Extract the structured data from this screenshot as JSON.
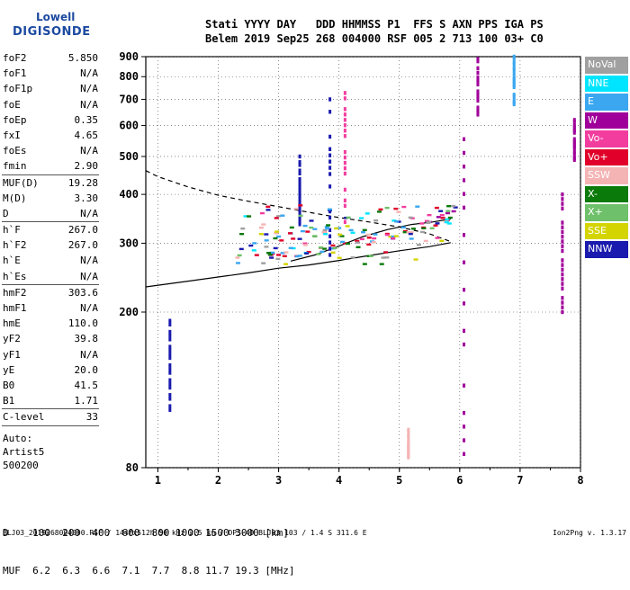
{
  "logo": {
    "line1": "Lowell",
    "line2": "DIGISONDE"
  },
  "header": {
    "row1": "Stati YYYY DAY   DDD HHMMSS P1  FFS S AXN PPS IGA PS",
    "row2": "Belem 2019 Sep25 268 004000 RSF 005 2 713 100 03+ C0"
  },
  "params": [
    {
      "label": "foF2",
      "value": "5.850"
    },
    {
      "label": "foF1",
      "value": "N/A"
    },
    {
      "label": "foF1p",
      "value": "N/A"
    },
    {
      "label": "foE",
      "value": "N/A"
    },
    {
      "label": "foEp",
      "value": "0.35"
    },
    {
      "label": "fxI",
      "value": "4.65"
    },
    {
      "label": "foEs",
      "value": "N/A"
    },
    {
      "label": "fmin",
      "value": "2.90"
    },
    {
      "sep": true
    },
    {
      "label": "MUF(D)",
      "value": "19.28"
    },
    {
      "label": "M(D)",
      "value": "3.30"
    },
    {
      "label": "D",
      "value": "N/A"
    },
    {
      "sep": true
    },
    {
      "label": "h`F",
      "value": "267.0"
    },
    {
      "label": "h`F2",
      "value": "267.0"
    },
    {
      "label": "h`E",
      "value": "N/A"
    },
    {
      "label": "h`Es",
      "value": "N/A"
    },
    {
      "sep": true
    },
    {
      "label": "hmF2",
      "value": "303.6"
    },
    {
      "label": "hmF1",
      "value": "N/A"
    },
    {
      "label": "hmE",
      "value": "110.0"
    },
    {
      "label": "yF2",
      "value": "39.8"
    },
    {
      "label": "yF1",
      "value": "N/A"
    },
    {
      "label": "yE",
      "value": "20.0"
    },
    {
      "label": "B0",
      "value": "41.5"
    },
    {
      "label": "B1",
      "value": "1.71"
    },
    {
      "sep": true
    },
    {
      "label": "C-level",
      "value": "33"
    },
    {
      "sep": true
    }
  ],
  "auto_block": {
    "line1": "Auto:",
    "line2": "Artist5",
    "line3": "500200"
  },
  "legend": [
    {
      "label": "NoVal",
      "color": "#a0a0a0"
    },
    {
      "label": "NNE",
      "color": "#00e5ff"
    },
    {
      "label": "E",
      "color": "#3aa7f0"
    },
    {
      "label": "W",
      "color": "#a0009a"
    },
    {
      "label": "Vo-",
      "color": "#f23d9f"
    },
    {
      "label": "Vo+",
      "color": "#e0002a"
    },
    {
      "label": "SSW",
      "color": "#f5b4b4"
    },
    {
      "label": "X-",
      "color": "#0a7a0a"
    },
    {
      "label": "X+",
      "color": "#6fc06a"
    },
    {
      "label": "SSE",
      "color": "#d4d400"
    },
    {
      "label": "NNW",
      "color": "#1a1aae"
    }
  ],
  "chart_data": {
    "type": "scatter",
    "title": "",
    "xlabel": "",
    "ylabel": "",
    "xlim": [
      0.8,
      8.0
    ],
    "ylim": [
      80,
      900
    ],
    "y_scale": "log",
    "xticks": [
      1,
      2,
      3,
      4,
      5,
      6,
      7,
      8
    ],
    "yticks": [
      80,
      200,
      300,
      400,
      500,
      600,
      700,
      800,
      900
    ],
    "grid": "dotted vertical and horizontal",
    "series": [
      {
        "kind": "solid-line",
        "color": "#000000",
        "points": [
          [
            0.8,
            232
          ],
          [
            1.5,
            240
          ],
          [
            2.5,
            252
          ],
          [
            3.0,
            259
          ],
          [
            3.5,
            264
          ],
          [
            4.0,
            271
          ],
          [
            4.5,
            279
          ],
          [
            5.0,
            287
          ],
          [
            5.5,
            294
          ],
          [
            5.85,
            301
          ]
        ]
      },
      {
        "kind": "dashed-line",
        "color": "#000000",
        "points": [
          [
            0.8,
            460
          ],
          [
            1.0,
            444
          ],
          [
            1.5,
            418
          ],
          [
            2.0,
            398
          ],
          [
            2.5,
            384
          ],
          [
            3.0,
            372
          ],
          [
            3.5,
            360
          ],
          [
            4.0,
            349
          ],
          [
            4.5,
            340
          ],
          [
            5.0,
            330
          ],
          [
            5.5,
            317
          ],
          [
            5.85,
            303
          ]
        ]
      },
      {
        "kind": "solid-line",
        "color": "#000000",
        "points": [
          [
            3.2,
            270
          ],
          [
            3.6,
            280
          ],
          [
            4.0,
            295
          ],
          [
            4.4,
            312
          ],
          [
            4.8,
            325
          ],
          [
            5.2,
            335
          ],
          [
            5.55,
            340
          ],
          [
            5.85,
            346
          ]
        ]
      },
      {
        "kind": "echo-trace",
        "color": "#e0002a",
        "points": [
          [
            2.9,
            282
          ],
          [
            3.0,
            280
          ],
          [
            3.1,
            278
          ],
          [
            3.3,
            278
          ],
          [
            3.5,
            285
          ],
          [
            3.7,
            292
          ],
          [
            3.9,
            296
          ],
          [
            4.1,
            300
          ],
          [
            4.3,
            304
          ],
          [
            4.5,
            310
          ],
          [
            4.8,
            317
          ],
          [
            5.1,
            322
          ],
          [
            5.4,
            329
          ],
          [
            5.6,
            333
          ],
          [
            5.8,
            344
          ]
        ]
      },
      {
        "kind": "echo-trace",
        "color": "#3aa7f0",
        "points": [
          [
            2.6,
            300
          ],
          [
            2.8,
            305
          ],
          [
            3.0,
            312
          ],
          [
            3.2,
            318
          ],
          [
            3.4,
            322
          ],
          [
            3.6,
            326
          ],
          [
            3.8,
            330
          ],
          [
            4.0,
            328
          ],
          [
            4.2,
            324
          ],
          [
            4.4,
            320
          ],
          [
            4.6,
            316
          ],
          [
            4.9,
            312
          ],
          [
            5.2,
            308
          ]
        ]
      },
      {
        "kind": "echo-trace",
        "color": "#a0009a",
        "points": [
          [
            5.5,
            340
          ],
          [
            5.65,
            350
          ],
          [
            5.8,
            358
          ],
          [
            5.9,
            362
          ]
        ]
      },
      {
        "kind": "echo-column",
        "color": "#a0009a",
        "x": 6.07,
        "y_range": [
          80,
          600
        ]
      },
      {
        "kind": "echo-column",
        "color": "#a0009a",
        "x": 6.3,
        "y_range": [
          640,
          900
        ]
      },
      {
        "kind": "echo-column",
        "color": "#a0009a",
        "x": 7.9,
        "y_range": [
          490,
          620
        ]
      },
      {
        "kind": "echo-column",
        "color": "#a0009a",
        "x": 7.7,
        "y_range": [
          200,
          400
        ]
      },
      {
        "kind": "echo-column",
        "color": "#3aa7f0",
        "x": 6.9,
        "y_range": [
          680,
          900
        ]
      },
      {
        "kind": "echo-column",
        "color": "#f23d9f",
        "x": 4.1,
        "y_range": [
          340,
          750
        ]
      },
      {
        "kind": "echo-column",
        "color": "#1a1aae",
        "x": 3.85,
        "y_range": [
          280,
          700
        ]
      },
      {
        "kind": "echo-column",
        "color": "#1a1aae",
        "x": 3.35,
        "y_range": [
          330,
          500
        ]
      },
      {
        "kind": "echo-column",
        "color": "#1a1aae",
        "x": 1.2,
        "y_range": [
          110,
          190
        ]
      },
      {
        "kind": "echo-column",
        "color": "#f5b4b4",
        "x": 5.15,
        "y_range": [
          85,
          100
        ]
      }
    ]
  },
  "muf_table": {
    "row1": "D    100  200  400  600  800 1000 1500 3000 [km]",
    "row2": "MUF  6.2  6.3  6.6  7.1  7.7  8.8 11.7 19.3 [MHz]"
  },
  "footer": {
    "left": "BLJ03_2019268004000.RSF / 144fx512h 50 kHz 2.5 km / DPS-4D BLJ03 103 / 1.4 S 311.6 E",
    "right": "Ion2Png v. 1.3.17"
  }
}
